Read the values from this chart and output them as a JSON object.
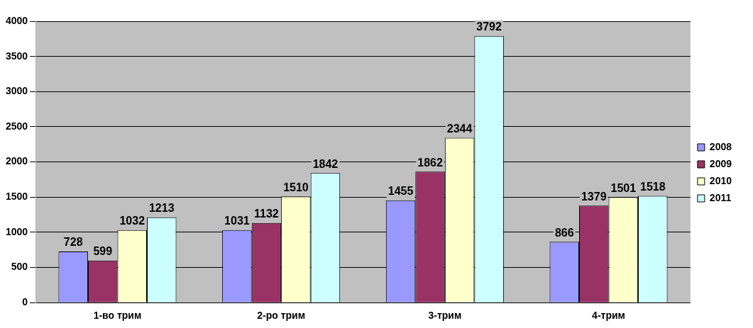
{
  "chart_data": {
    "type": "bar",
    "categories": [
      "1-во трим",
      "2-ро трим",
      "3-трим",
      "4-трим"
    ],
    "series": [
      {
        "name": "2008",
        "color": "#9999ff",
        "values": [
          728,
          1031,
          1455,
          866
        ]
      },
      {
        "name": "2009",
        "color": "#993366",
        "values": [
          599,
          1132,
          1862,
          1379
        ]
      },
      {
        "name": "2010",
        "color": "#ffffcc",
        "values": [
          1032,
          1510,
          2344,
          1501
        ]
      },
      {
        "name": "2011",
        "color": "#ccffff",
        "values": [
          1213,
          1842,
          3792,
          1518
        ]
      }
    ],
    "ylim": [
      0,
      4000
    ],
    "yticks": [
      0,
      500,
      1000,
      1500,
      2000,
      2500,
      3000,
      3500,
      4000
    ],
    "grid": "y",
    "legend": "right",
    "data_labels": true
  }
}
